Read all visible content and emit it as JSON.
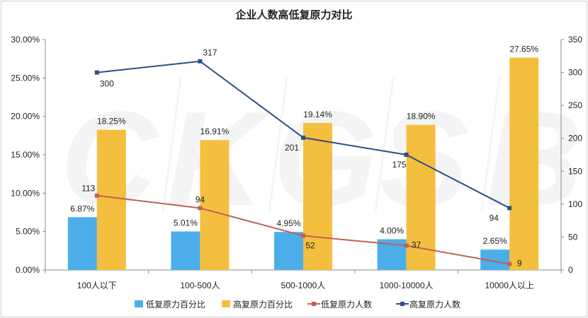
{
  "chart_data": {
    "type": "bar",
    "title": "企业人数高低复原力对比",
    "categories": [
      "100人以下",
      "100-500人",
      "500-1000人",
      "1000-10000人",
      "10000人以上"
    ],
    "series": [
      {
        "name": "低复原力百分比",
        "type": "bar",
        "axis": "left",
        "color": "#4baee8",
        "values": [
          6.87,
          5.01,
          4.95,
          4.0,
          2.65
        ],
        "labels": [
          "6.87%",
          "5.01%",
          "4.95%",
          "4.00%",
          "2.65%"
        ]
      },
      {
        "name": "高复原力百分比",
        "type": "bar",
        "axis": "left",
        "color": "#f4bf3f",
        "values": [
          18.25,
          16.91,
          19.14,
          18.9,
          27.65
        ],
        "labels": [
          "18.25%",
          "16.91%",
          "19.14%",
          "18.90%",
          "27.65%"
        ]
      },
      {
        "name": "低复原力人数",
        "type": "line",
        "axis": "right",
        "color": "#c0605a",
        "values": [
          113,
          94,
          52,
          37,
          9
        ],
        "labels": [
          "113",
          "94",
          "52",
          "37",
          "9"
        ]
      },
      {
        "name": "高复原力人数",
        "type": "line",
        "axis": "right",
        "color": "#2e4f86",
        "values": [
          300,
          317,
          201,
          175,
          94
        ],
        "labels": [
          "300",
          "317",
          "201",
          "175",
          "94"
        ]
      }
    ],
    "left_axis": {
      "ylim": [
        0,
        30
      ],
      "ticks": [
        "0.00%",
        "5.00%",
        "10.00%",
        "15.00%",
        "20.00%",
        "25.00%",
        "30.00%"
      ]
    },
    "right_axis": {
      "ylim": [
        0,
        350
      ],
      "ticks": [
        "0",
        "50",
        "100",
        "150",
        "200",
        "250",
        "300",
        "350"
      ]
    },
    "legend_position": "bottom",
    "grid": false,
    "watermark": "CKGSB"
  }
}
